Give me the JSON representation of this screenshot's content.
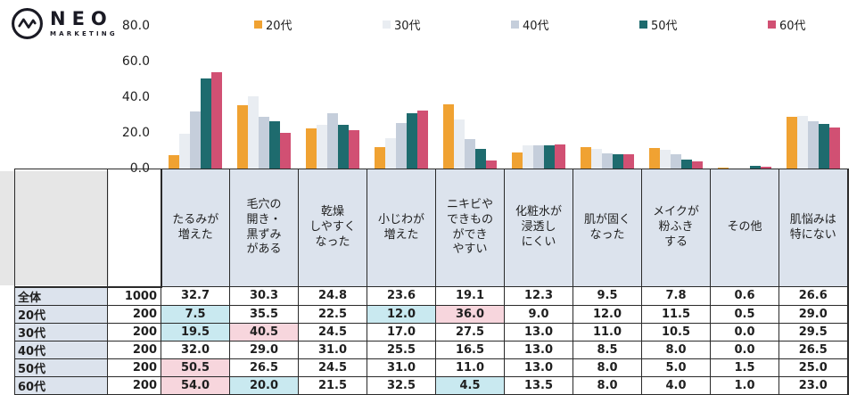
{
  "logo": {
    "name": "NEO",
    "sub": "MARKETING"
  },
  "chart_data": {
    "type": "bar",
    "title": "",
    "xlabel": "",
    "ylabel": "",
    "ylim": [
      0,
      80
    ],
    "grid": false,
    "legend_position": "top",
    "y_ticks": [
      {
        "v": 0,
        "label": "0.0"
      },
      {
        "v": 20,
        "label": "20.0"
      },
      {
        "v": 40,
        "label": "40.0"
      },
      {
        "v": 60,
        "label": "60.0"
      },
      {
        "v": 80,
        "label": "80.0"
      }
    ],
    "categories": [
      "たるみが増えた",
      "毛穴の開き・黒ずみがある",
      "乾燥しやすくなった",
      "小じわが増えた",
      "ニキビやできものができやすい",
      "化粧水が浸透しにくい",
      "肌が固くなった",
      "メイクが粉ふきする",
      "その他",
      "肌悩みは特にない"
    ],
    "series": [
      {
        "name": "20代",
        "color": "#F0A232",
        "values": [
          7.5,
          35.5,
          22.5,
          12.0,
          36.0,
          9.0,
          12.0,
          11.5,
          0.5,
          29.0
        ]
      },
      {
        "name": "30代",
        "color": "#E9EDF2",
        "values": [
          19.5,
          40.5,
          24.5,
          17.0,
          27.5,
          13.0,
          11.0,
          10.5,
          0.0,
          29.5
        ]
      },
      {
        "name": "40代",
        "color": "#C5CEDB",
        "values": [
          32.0,
          29.0,
          31.0,
          25.5,
          16.5,
          13.0,
          8.5,
          8.0,
          0.0,
          26.5
        ]
      },
      {
        "name": "50代",
        "color": "#1E6B6E",
        "values": [
          50.5,
          26.5,
          24.5,
          31.0,
          11.0,
          13.0,
          8.0,
          5.0,
          1.5,
          25.0
        ]
      },
      {
        "name": "60代",
        "color": "#D15073",
        "values": [
          54.0,
          20.0,
          21.5,
          32.5,
          4.5,
          13.5,
          8.0,
          4.0,
          1.0,
          23.0
        ]
      }
    ]
  },
  "table": {
    "col_headers": [
      "たるみが\n増えた",
      "毛穴の\n開き・\n黒ずみ\nがある",
      "乾燥\nしやすく\nなった",
      "小じわが\n増えた",
      "ニキビや\nできもの\nができ\nやすい",
      "化粧水が\n浸透し\nにくい",
      "肌が固く\nなった",
      "メイクが\n粉ふき\nする",
      "その他",
      "肌悩みは\n特にない"
    ],
    "rows": [
      {
        "label": "全体",
        "n": "1000",
        "values": [
          "32.7",
          "30.3",
          "24.8",
          "23.6",
          "19.1",
          "12.3",
          "9.5",
          "7.8",
          "0.6",
          "26.6"
        ]
      },
      {
        "label": "20代",
        "n": "200",
        "values": [
          "7.5",
          "35.5",
          "22.5",
          "12.0",
          "36.0",
          "9.0",
          "12.0",
          "11.5",
          "0.5",
          "29.0"
        ]
      },
      {
        "label": "30代",
        "n": "200",
        "values": [
          "19.5",
          "40.5",
          "24.5",
          "17.0",
          "27.5",
          "13.0",
          "11.0",
          "10.5",
          "0.0",
          "29.5"
        ]
      },
      {
        "label": "40代",
        "n": "200",
        "values": [
          "32.0",
          "29.0",
          "31.0",
          "25.5",
          "16.5",
          "13.0",
          "8.5",
          "8.0",
          "0.0",
          "26.5"
        ]
      },
      {
        "label": "50代",
        "n": "200",
        "values": [
          "50.5",
          "26.5",
          "24.5",
          "31.0",
          "11.0",
          "13.0",
          "8.0",
          "5.0",
          "1.5",
          "25.0"
        ]
      },
      {
        "label": "60代",
        "n": "200",
        "values": [
          "54.0",
          "20.0",
          "21.5",
          "32.5",
          "4.5",
          "13.5",
          "8.0",
          "4.0",
          "1.0",
          "23.0"
        ]
      }
    ],
    "highlights": [
      {
        "row": 1,
        "col": 0,
        "type": "low"
      },
      {
        "row": 1,
        "col": 3,
        "type": "low"
      },
      {
        "row": 1,
        "col": 4,
        "type": "high"
      },
      {
        "row": 2,
        "col": 0,
        "type": "low"
      },
      {
        "row": 2,
        "col": 1,
        "type": "high"
      },
      {
        "row": 4,
        "col": 0,
        "type": "high"
      },
      {
        "row": 5,
        "col": 0,
        "type": "high"
      },
      {
        "row": 5,
        "col": 1,
        "type": "low"
      },
      {
        "row": 5,
        "col": 4,
        "type": "low"
      }
    ],
    "highlight_colors": {
      "low": "#C9E9F0",
      "high": "#F7D6DD"
    }
  }
}
